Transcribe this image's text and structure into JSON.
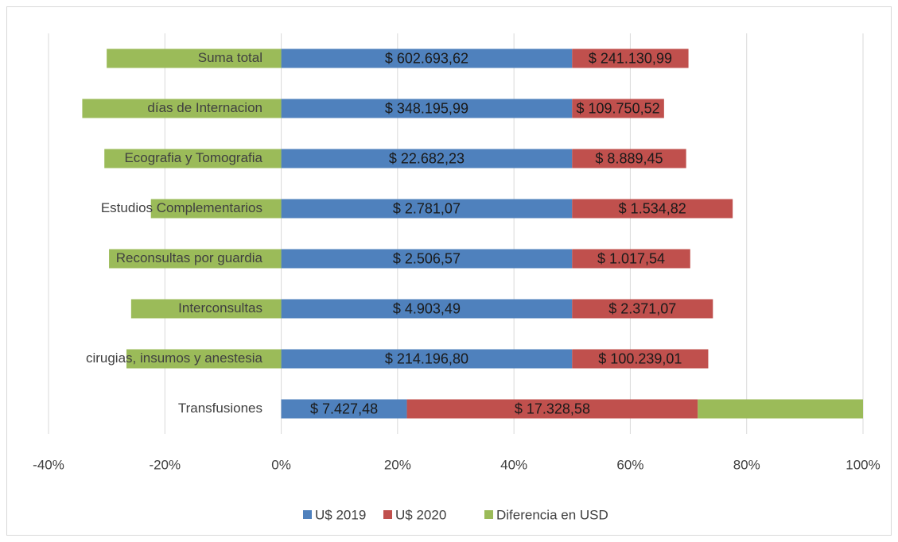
{
  "chart_data": {
    "type": "stacked_barh",
    "categories": [
      "Suma total",
      "días de Internacion",
      "Ecografia y Tomografia",
      "Estudios Complementarios",
      "Reconsultas por guardia",
      "Interconsultas",
      "cirugias, insumos y anestesia",
      "Transfusiones"
    ],
    "series": [
      {
        "name": "U$ 2019",
        "color": "#4f81bd",
        "values": [
          50,
          50,
          50,
          50,
          50,
          50,
          50,
          21.6
        ],
        "data_labels": [
          "$ 602.693,62",
          "$ 348.195,99",
          "$ 22.682,23",
          "$ 2.781,07",
          "$ 2.506,57",
          "$ 4.903,49",
          "$ 214.196,80",
          "$ 7.427,48"
        ]
      },
      {
        "name": "U$ 2020",
        "color": "#c0504d",
        "values": [
          20.0,
          15.8,
          19.6,
          27.6,
          20.3,
          24.2,
          23.4,
          50
        ],
        "data_labels": [
          "$ 241.130,99",
          "$ 109.750,52",
          "$ 8.889,45",
          "$ 1.534,82",
          "$ 1.017,54",
          "$ 2.371,07",
          "$ 100.239,01",
          "$ 17.328,58"
        ]
      },
      {
        "name": "Diferencia en USD",
        "color": "#9bbb59",
        "values": [
          -30.0,
          -34.2,
          -30.4,
          -22.4,
          -29.6,
          -25.8,
          -26.6,
          28.4
        ]
      }
    ],
    "xlim": [
      -40,
      100
    ],
    "xticks": [
      {
        "value": -40,
        "label": "-40%"
      },
      {
        "value": -20,
        "label": "-20%"
      },
      {
        "value": 0,
        "label": "0%"
      },
      {
        "value": 20,
        "label": "20%"
      },
      {
        "value": 40,
        "label": "40%"
      },
      {
        "value": 60,
        "label": "60%"
      },
      {
        "value": 80,
        "label": "80%"
      },
      {
        "value": 100,
        "label": "100%"
      }
    ],
    "grid": true,
    "legend": "bottom"
  }
}
